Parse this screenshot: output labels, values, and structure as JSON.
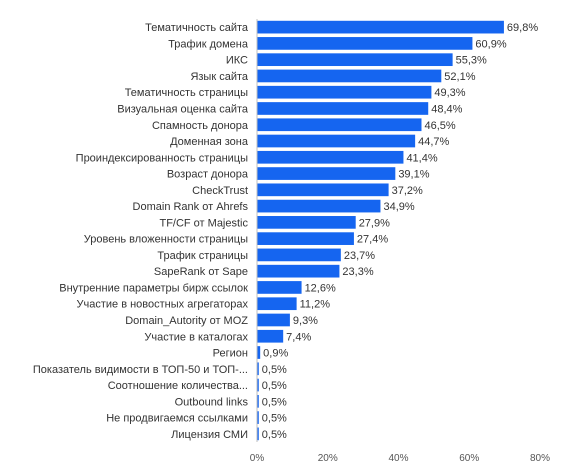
{
  "chart_data": {
    "type": "bar",
    "orientation": "horizontal",
    "bar_color": "#1565f0",
    "categories": [
      "Тематичность сайта",
      "Трафик домена",
      "ИКС",
      "Язык сайта",
      "Тематичность страницы",
      "Визуальная оценка сайта",
      "Спамность донора",
      "Доменная зона",
      "Проиндексированность страницы",
      "Возраст донора",
      "CheckTrust",
      "Domain Rank от Ahrefs",
      "TF/CF от Majestic",
      "Уровень вложенности страницы",
      "Трафик страницы",
      "SapeRank от Sape",
      "Внутренние параметры бирж ссылок",
      "Участие в новостных агрегаторах",
      "Domain_Autority от MOZ",
      "Участие в каталогах",
      "Регион",
      "Показатель видимости в ТОП-50 и ТОП-...",
      "Соотношение количества...",
      "Outbound links",
      "Не продвигаемся ссылками",
      "Лицензия СМИ"
    ],
    "values": [
      69.8,
      60.9,
      55.3,
      52.1,
      49.3,
      48.4,
      46.5,
      44.7,
      41.4,
      39.1,
      37.2,
      34.9,
      27.9,
      27.4,
      23.7,
      23.3,
      12.6,
      11.2,
      9.3,
      7.4,
      0.9,
      0.5,
      0.5,
      0.5,
      0.5,
      0.5
    ],
    "value_labels": [
      "69,8%",
      "60,9%",
      "55,3%",
      "52,1%",
      "49,3%",
      "48,4%",
      "46,5%",
      "44,7%",
      "41,4%",
      "39,1%",
      "37,2%",
      "34,9%",
      "27,9%",
      "27,4%",
      "23,7%",
      "23,3%",
      "12,6%",
      "11,2%",
      "9,3%",
      "7,4%",
      "0,9%",
      "0,5%",
      "0,5%",
      "0,5%",
      "0,5%",
      "0,5%"
    ],
    "x_ticks": [
      "0%",
      "20%",
      "40%",
      "60%",
      "80%"
    ],
    "xlim": [
      0,
      80
    ],
    "title": "",
    "xlabel": "",
    "ylabel": "",
    "grid": false,
    "legend": false
  }
}
